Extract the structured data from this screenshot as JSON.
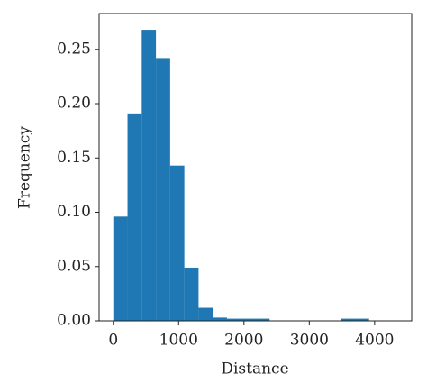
{
  "chart_data": {
    "type": "histogram",
    "x_label": "Distance",
    "y_label": "Frequency",
    "bins": [
      0,
      217.5,
      435,
      652.5,
      870,
      1087.5,
      1305,
      1522.5,
      1740,
      1957.5,
      2175,
      2392.5,
      2610,
      2827.5,
      3045,
      3262.5,
      3480,
      3697.5,
      3915,
      4132.5,
      4350
    ],
    "values": [
      0.096,
      0.191,
      0.268,
      0.242,
      0.143,
      0.049,
      0.012,
      0.003,
      0.002,
      0.002,
      0.002,
      0,
      0,
      0,
      0,
      0,
      0.002,
      0.002,
      0,
      0
    ],
    "color": "#1f77b4",
    "xlim": [
      -217.5,
      4567.5
    ],
    "xticks": [
      0,
      1000,
      2000,
      3000,
      4000
    ],
    "ylim": [
      0,
      0.283
    ],
    "yticks": [
      {
        "value": 0,
        "label": "0.00"
      },
      {
        "value": 0.05,
        "label": "0.05"
      },
      {
        "value": 0.1,
        "label": "0.10"
      },
      {
        "value": 0.15,
        "label": "0.15"
      },
      {
        "value": 0.2,
        "label": "0.20"
      },
      {
        "value": 0.25,
        "label": "0.25"
      }
    ]
  }
}
